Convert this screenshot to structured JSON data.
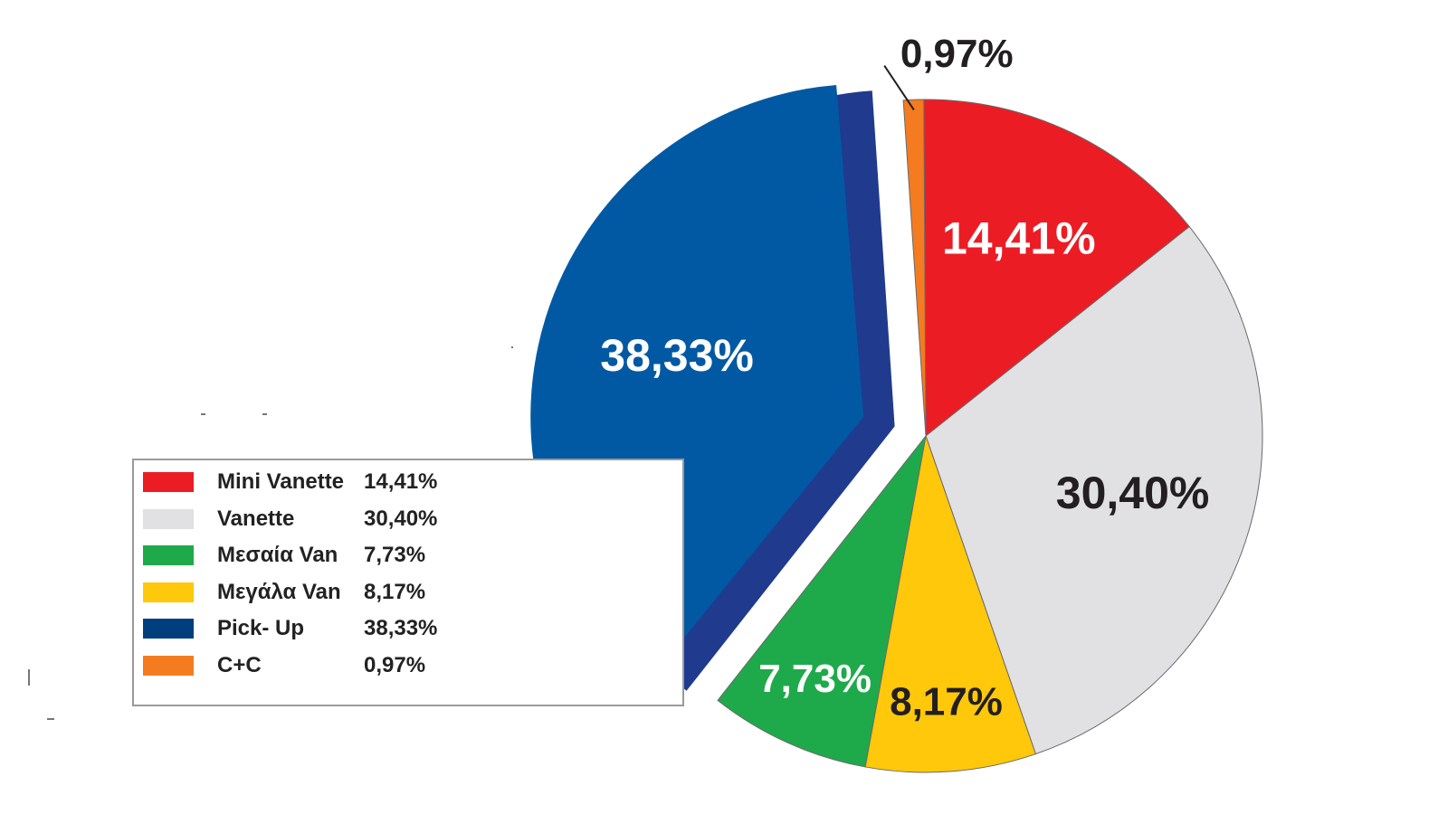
{
  "chart_data": {
    "type": "pie",
    "title": "",
    "slices": [
      {
        "name": "Mini Vanette",
        "value": 14.41,
        "label": "14,41%",
        "color": "#ec1c24",
        "label_color": "#ffffff"
      },
      {
        "name": "Vanette",
        "value": 30.4,
        "label": "30,40%",
        "color": "#e1e1e3",
        "label_color": "#231f20"
      },
      {
        "name": "Μεγάλα Van",
        "value": 8.17,
        "label": "8,17%",
        "color": "#ffc80a",
        "label_color": "#231f20"
      },
      {
        "name": "Μεσαία Van",
        "value": 7.73,
        "label": "7,73%",
        "color": "#1eaa4a",
        "label_color": "#ffffff"
      },
      {
        "name": "Pick- Up",
        "value": 38.33,
        "label": "38,33%",
        "color": "#0259a3",
        "label_color": "#ffffff",
        "exploded": true,
        "edge_color": "#203a8e"
      },
      {
        "name": "C+C",
        "value": 0.97,
        "label": "0,97%",
        "color": "#f47b20",
        "label_color": "#231f20",
        "label_outside": true
      }
    ],
    "legend": {
      "placement": "bottom-left",
      "entries": [
        {
          "name": "Mini Vanette",
          "value": "14,41%",
          "color": "#ec1c24"
        },
        {
          "name": "Vanette",
          "value": "30,40%",
          "color": "#e1e1e3"
        },
        {
          "name": "Μεσαία Van",
          "value": "7,73%",
          "color": "#1eaa4a"
        },
        {
          "name": "Μεγάλα Van",
          "value": "8,17%",
          "color": "#ffc80a"
        },
        {
          "name": "Pick- Up",
          "value": "38,33%",
          "color": "#003f7d"
        },
        {
          "name": "C+C",
          "value": "0,97%",
          "color": "#f47b20"
        }
      ]
    }
  }
}
